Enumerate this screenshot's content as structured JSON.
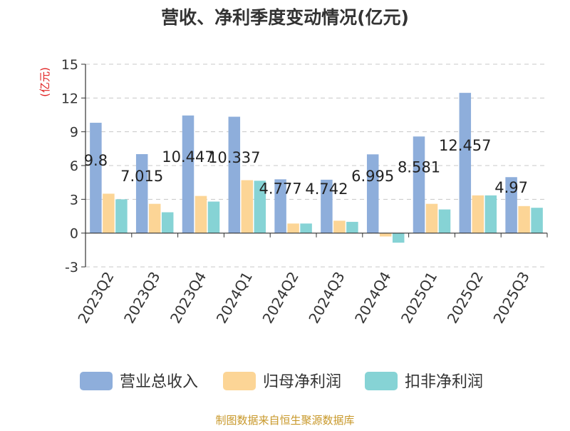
{
  "chart_data": {
    "type": "bar",
    "title": "营收、净利季度变动情况(亿元)",
    "ylabel": "(亿元)",
    "xlabel": "",
    "ylim": [
      -3,
      15
    ],
    "yticks": [
      -3,
      0,
      3,
      6,
      9,
      12,
      15
    ],
    "grid": true,
    "legend_position": "bottom",
    "categories": [
      "2023Q2",
      "2023Q3",
      "2023Q4",
      "2024Q1",
      "2024Q2",
      "2024Q3",
      "2024Q4",
      "2025Q1",
      "2025Q2",
      "2025Q3"
    ],
    "series": [
      {
        "name": "营业总收入",
        "color": "#8eaedb",
        "values": [
          9.8,
          7.015,
          10.447,
          10.337,
          4.777,
          4.742,
          6.995,
          8.581,
          12.457,
          4.97
        ],
        "labels": [
          "9.8",
          "7.015",
          "10.447",
          "10.337",
          "4.777",
          "4.742",
          "6.995",
          "8.581",
          "12.457",
          "4.97"
        ]
      },
      {
        "name": "归母净利润",
        "color": "#fcd596",
        "values": [
          3.5,
          2.6,
          3.3,
          4.7,
          0.85,
          1.1,
          -0.3,
          2.6,
          3.35,
          2.4
        ]
      },
      {
        "name": "扣非净利润",
        "color": "#86d3d5",
        "values": [
          3.0,
          1.85,
          2.8,
          4.65,
          0.85,
          1.0,
          -0.85,
          2.1,
          3.35,
          2.25
        ]
      }
    ],
    "source": "制图数据来自恒生聚源数据库"
  }
}
